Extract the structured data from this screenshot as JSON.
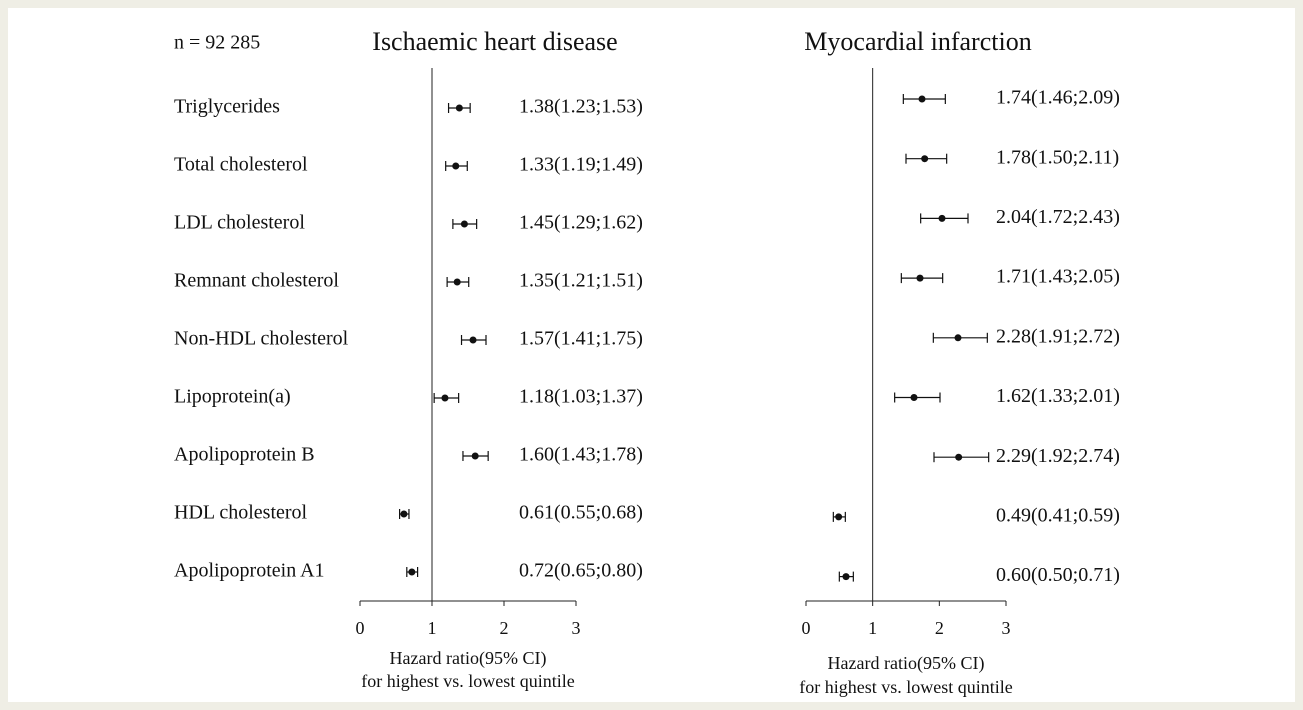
{
  "chart_data": [
    {
      "type": "forest",
      "title": "Ischaemic heart disease",
      "annotation": "n = 92 285",
      "categories": [
        "Triglycerides",
        "Total cholesterol",
        "LDL cholesterol",
        "Remnant cholesterol",
        "Non-HDL cholesterol",
        "Lipoprotein(a)",
        "Apolipoprotein B",
        "HDL cholesterol",
        "Apolipoprotein A1"
      ],
      "values": [
        1.38,
        1.33,
        1.45,
        1.35,
        1.57,
        1.18,
        1.6,
        0.61,
        0.72
      ],
      "lower": [
        1.23,
        1.19,
        1.29,
        1.21,
        1.41,
        1.03,
        1.43,
        0.55,
        0.65
      ],
      "upper": [
        1.53,
        1.49,
        1.62,
        1.51,
        1.75,
        1.37,
        1.78,
        0.68,
        0.8
      ],
      "value_labels": [
        "1.38(1.23;1.53)",
        "1.33(1.19;1.49)",
        "1.45(1.29;1.62)",
        "1.35(1.21;1.51)",
        "1.57(1.41;1.75)",
        "1.18(1.03;1.37)",
        "1.60(1.43;1.78)",
        "0.61(0.55;0.68)",
        "0.72(0.65;0.80)"
      ],
      "xlim": [
        0,
        3
      ],
      "xticks": [
        0,
        1,
        2,
        3
      ],
      "ref_line": 1,
      "xlabel": [
        "Hazard ratio(95% CI)",
        "for highest vs. lowest quintile"
      ],
      "color": "#111111"
    },
    {
      "type": "forest",
      "title": "Myocardial infarction",
      "values": [
        1.74,
        1.78,
        2.04,
        1.71,
        2.28,
        1.62,
        2.29,
        0.49,
        0.6
      ],
      "lower": [
        1.46,
        1.5,
        1.72,
        1.43,
        1.91,
        1.33,
        1.92,
        0.41,
        0.5
      ],
      "upper": [
        2.09,
        2.11,
        2.43,
        2.05,
        2.72,
        2.01,
        2.74,
        0.59,
        0.71
      ],
      "value_labels": [
        "1.74(1.46;2.09)",
        "1.78(1.50;2.11)",
        "2.04(1.72;2.43)",
        "1.71(1.43;2.05)",
        "2.28(1.91;2.72)",
        "1.62(1.33;2.01)",
        "2.29(1.92;2.74)",
        "0.49(0.41;0.59)",
        "0.60(0.50;0.71)"
      ],
      "xlim": [
        0,
        3
      ],
      "xticks": [
        0,
        1,
        2,
        3
      ],
      "ref_line": 1,
      "xlabel": [
        "Hazard ratio(95% CI)",
        "for highest vs. lowest quintile"
      ],
      "color": "#111111"
    }
  ]
}
